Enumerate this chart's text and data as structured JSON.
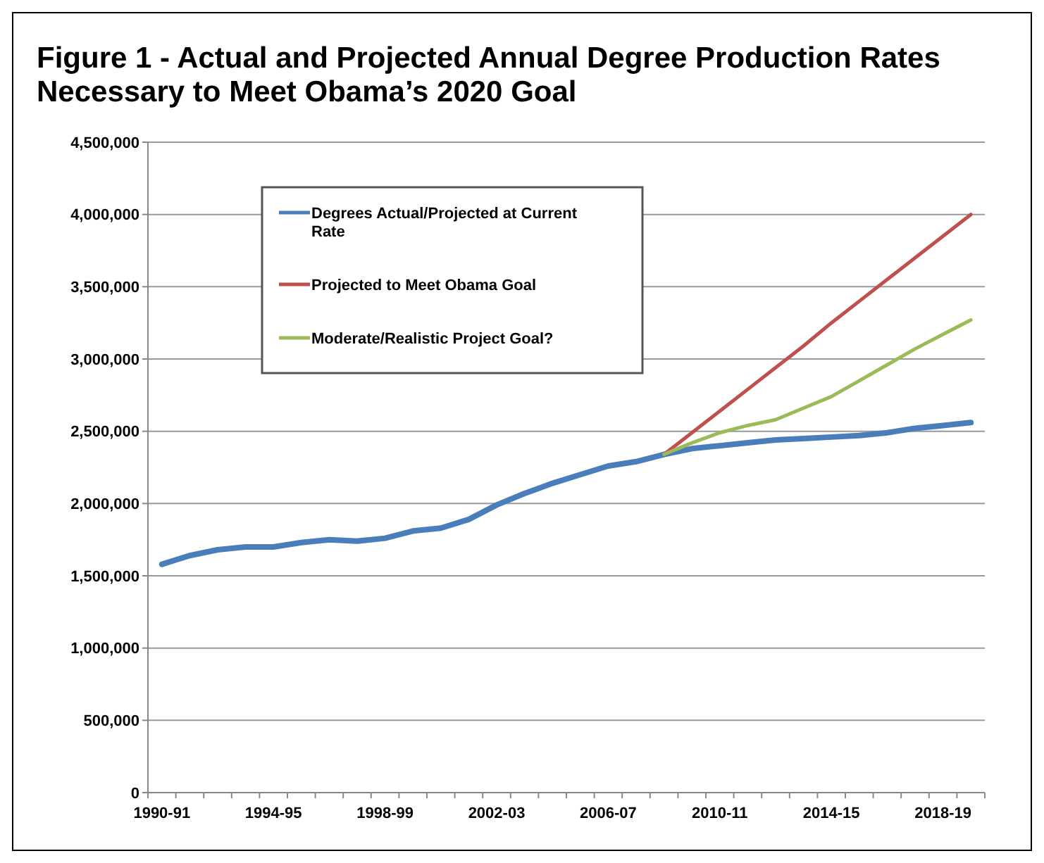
{
  "chart_data": {
    "type": "line",
    "title": "Figure 1 - Actual and Projected Annual Degree Production Rates Necessary to Meet Obama’s 2020 Goal",
    "categories": [
      "1990-91",
      null,
      null,
      null,
      "1994-95",
      null,
      null,
      null,
      "1998-99",
      null,
      null,
      null,
      "2002-03",
      null,
      null,
      null,
      "2006-07",
      null,
      null,
      null,
      "2010-11",
      null,
      null,
      null,
      "2014-15",
      null,
      null,
      null,
      "2018-19",
      null
    ],
    "series": [
      {
        "name": "Degrees Actual/Projected at Current Rate",
        "color": "#4a7ebb",
        "values": [
          1580000,
          1640000,
          1680000,
          1700000,
          1700000,
          1730000,
          1750000,
          1740000,
          1760000,
          1810000,
          1830000,
          1890000,
          1990000,
          2070000,
          2140000,
          2200000,
          2260000,
          2290000,
          2340000,
          2380000,
          2400000,
          2420000,
          2440000,
          2450000,
          2460000,
          2470000,
          2490000,
          2520000,
          2540000,
          2560000
        ]
      },
      {
        "name": "Projected  to Meet Obama Goal",
        "color": "#c0504d",
        "values": [
          null,
          null,
          null,
          null,
          null,
          null,
          null,
          null,
          null,
          null,
          null,
          null,
          null,
          null,
          null,
          null,
          null,
          null,
          2340000,
          2490000,
          2640000,
          2790000,
          2940000,
          3090000,
          3250000,
          3400000,
          3550000,
          3700000,
          3850000,
          4000000
        ]
      },
      {
        "name": "Moderate/Realistic Project Goal?",
        "color": "#9bbb59",
        "values": [
          null,
          null,
          null,
          null,
          null,
          null,
          null,
          null,
          null,
          null,
          null,
          null,
          null,
          null,
          null,
          null,
          null,
          null,
          2340000,
          2420000,
          2490000,
          2540000,
          2580000,
          2660000,
          2740000,
          2850000,
          2960000,
          3070000,
          3170000,
          3270000
        ]
      }
    ],
    "ylim": [
      0,
      4500000
    ],
    "yticks": [
      0,
      {
        "value": 500000,
        "label": "500,000"
      },
      {
        "value": 1000000,
        "label": "1,000,000"
      },
      {
        "value": 1500000,
        "label": "1,500,000"
      },
      {
        "value": 2000000,
        "label": "2,000,000"
      },
      {
        "value": 2500000,
        "label": "2,500,000"
      },
      {
        "value": 3000000,
        "label": "3,000,000"
      },
      {
        "value": 3500000,
        "label": "3,500,000"
      },
      {
        "value": 4000000,
        "label": "4,000,000"
      },
      {
        "value": 4500000,
        "label": "4,500,000"
      }
    ],
    "grid": "y",
    "legend": "top left",
    "marker": "none",
    "line_style": "solid"
  }
}
